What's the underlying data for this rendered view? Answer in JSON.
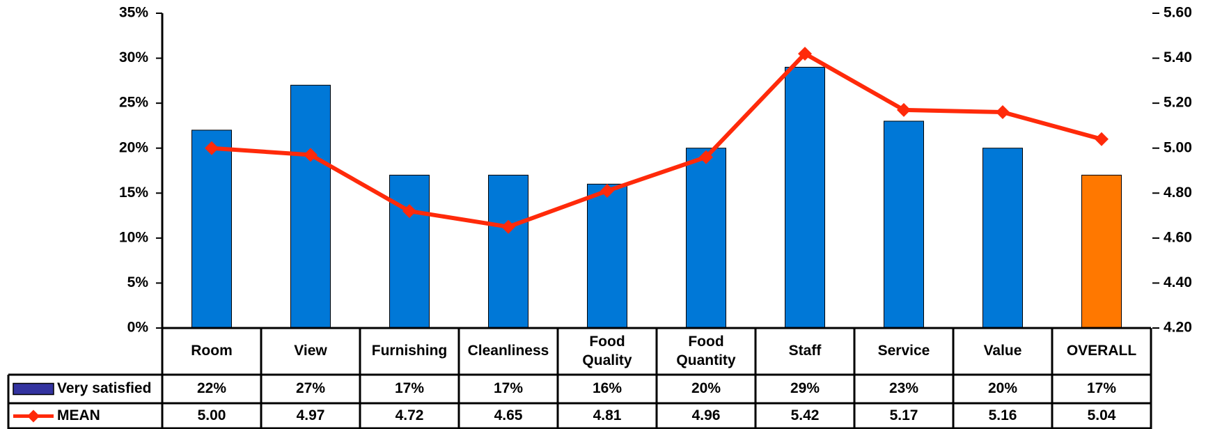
{
  "chart_data": {
    "type": "bar",
    "categories": [
      "Room",
      "View",
      "Furnishing",
      "Cleanliness",
      "Food Quality",
      "Food Quantity",
      "Staff",
      "Service",
      "Value",
      "OVERALL"
    ],
    "series": [
      {
        "name": "Very satisfied",
        "type": "bar",
        "axis": "left",
        "values": [
          22,
          27,
          17,
          17,
          16,
          20,
          29,
          23,
          20,
          17
        ],
        "labels": [
          "22%",
          "27%",
          "17%",
          "17%",
          "16%",
          "20%",
          "29%",
          "23%",
          "20%",
          "17%"
        ]
      },
      {
        "name": "MEAN",
        "type": "line",
        "axis": "right",
        "values": [
          5.0,
          4.97,
          4.72,
          4.65,
          4.81,
          4.96,
          5.42,
          5.17,
          5.16,
          5.04
        ],
        "labels": [
          "5.00",
          "4.97",
          "4.72",
          "4.65",
          "4.81",
          "4.96",
          "5.42",
          "5.17",
          "5.16",
          "5.04"
        ]
      }
    ],
    "left_axis": {
      "ylim": [
        0,
        35
      ],
      "ticks": [
        0,
        5,
        10,
        15,
        20,
        25,
        30,
        35
      ],
      "tick_labels": [
        "0%",
        "5%",
        "10%",
        "15%",
        "20%",
        "25%",
        "30%",
        "35%"
      ]
    },
    "right_axis": {
      "ylim": [
        4.2,
        5.6
      ],
      "ticks": [
        4.2,
        4.4,
        4.6,
        4.8,
        5.0,
        5.2,
        5.4,
        5.6
      ],
      "tick_labels": [
        "4.20",
        "4.40",
        "4.60",
        "4.80",
        "5.00",
        "5.20",
        "5.40",
        "5.60"
      ]
    },
    "grid": false,
    "legend": "data-table",
    "colors": {
      "bar": "#0078D7",
      "bar_highlight": "#FF7800",
      "line": "#FF2A0A",
      "legend_bar_swatch": "#3333A0"
    },
    "highlight_category": "OVERALL"
  }
}
